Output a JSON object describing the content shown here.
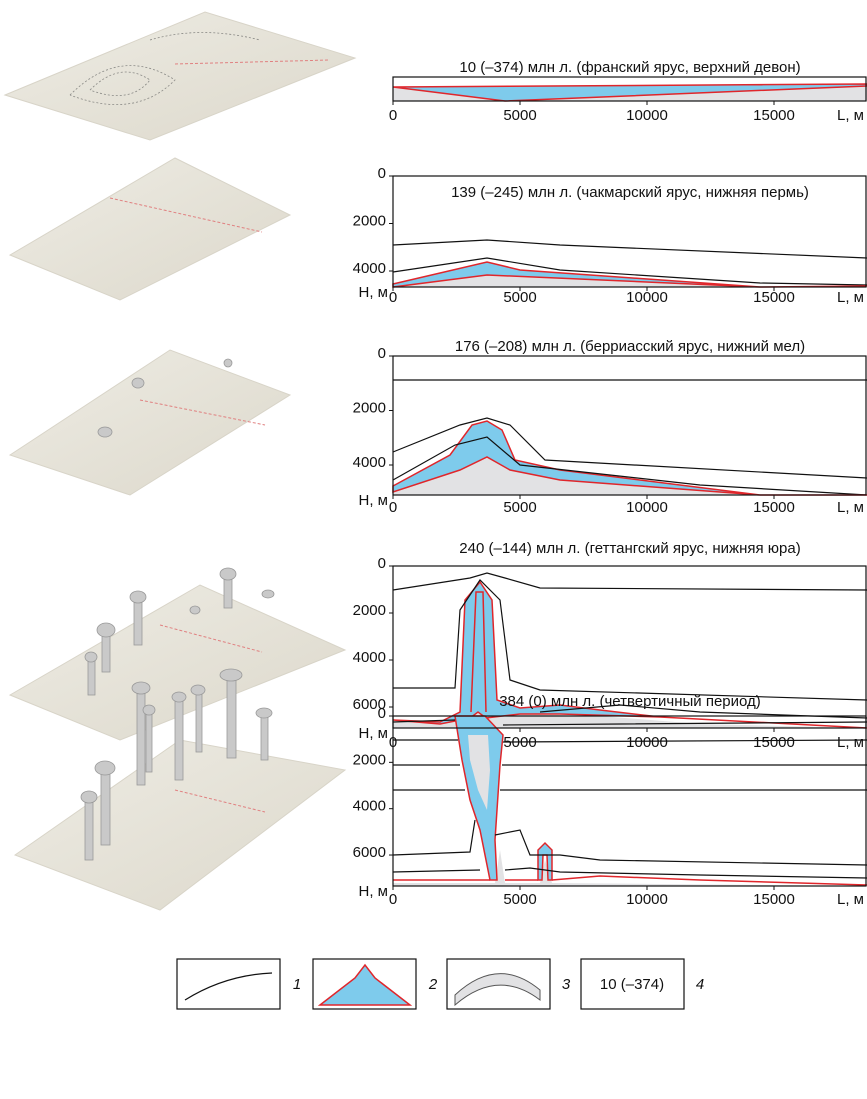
{
  "panels": [
    {
      "title": "10 (–374) млн л. (франский ярус, верхний девон)",
      "x_ticks": [
        0,
        5000,
        10000,
        15000
      ],
      "x_label": "L, м"
    },
    {
      "title": "139 (–245) млн л. (чакмарский ярус, нижняя пермь)",
      "x_ticks": [
        0,
        5000,
        10000,
        15000
      ],
      "x_label": "L, м",
      "y_ticks": [
        0,
        2000,
        4000
      ],
      "y_label": "Н, м"
    },
    {
      "title": "176 (–208) млн л. (берриасский ярус, нижний мел)",
      "x_ticks": [
        0,
        5000,
        10000,
        15000
      ],
      "x_label": "L, м",
      "y_ticks": [
        0,
        2000,
        4000
      ],
      "y_label": "Н, м"
    },
    {
      "title": "240 (–144) млн л. (геттангский ярус, нижняя юра)",
      "x_ticks": [
        0,
        5000,
        10000,
        15000
      ],
      "x_label": "L, м",
      "y_ticks": [
        0,
        2000,
        4000,
        6000
      ],
      "y_label": "Н, м"
    },
    {
      "title": "384 (0) млн л. (четвертичный период)",
      "x_ticks": [
        0,
        5000,
        10000,
        15000
      ],
      "x_label": "L, м",
      "y_ticks": [
        0,
        2000,
        4000,
        6000
      ],
      "y_label": "Н, м"
    }
  ],
  "legend": [
    {
      "number": "1"
    },
    {
      "number": "2"
    },
    {
      "number": "3"
    },
    {
      "number": "4",
      "sample": "10 (–374)"
    }
  ]
}
